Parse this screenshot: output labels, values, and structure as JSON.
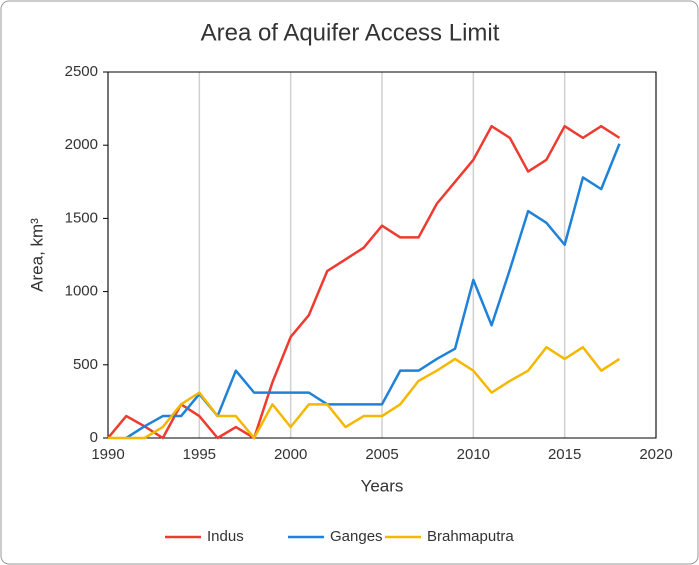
{
  "chart_data": {
    "type": "line",
    "title": "Area of Aquifer Access Limit",
    "x_label": "Years",
    "y_label": "Area, km³",
    "x": [
      1990,
      1991,
      1992,
      1993,
      1994,
      1995,
      1996,
      1997,
      1998,
      1999,
      2000,
      2001,
      2002,
      2003,
      2004,
      2005,
      2006,
      2007,
      2008,
      2009,
      2010,
      2011,
      2012,
      2013,
      2014,
      2015,
      2016,
      2017,
      2018
    ],
    "series": [
      {
        "name": "Indus",
        "color": "#ee3b2f",
        "values": [
          0,
          150,
          80,
          0,
          230,
          150,
          0,
          75,
          0,
          380,
          690,
          840,
          1140,
          1220,
          1300,
          1450,
          1370,
          1370,
          1600,
          1750,
          1900,
          2130,
          2050,
          1820,
          1900,
          2130,
          2050,
          2130,
          2050
        ]
      },
      {
        "name": "Ganges",
        "color": "#1f82d8",
        "values": [
          null,
          0,
          80,
          150,
          150,
          300,
          150,
          460,
          310,
          310,
          310,
          310,
          230,
          230,
          230,
          230,
          460,
          460,
          540,
          610,
          1080,
          770,
          1150,
          1550,
          1470,
          1320,
          1780,
          1700,
          2010
        ]
      },
      {
        "name": "Brahmaputra",
        "color": "#f5b800",
        "values": [
          0,
          0,
          0,
          75,
          230,
          310,
          150,
          150,
          0,
          230,
          75,
          230,
          230,
          75,
          150,
          150,
          230,
          390,
          460,
          540,
          460,
          310,
          390,
          460,
          620,
          540,
          620,
          460,
          540
        ]
      }
    ],
    "xlim": [
      1990,
      2020
    ],
    "xticks": [
      1990,
      1995,
      2000,
      2005,
      2010,
      2015,
      2020
    ],
    "ylim": [
      0,
      2500
    ],
    "yticks": [
      0,
      500,
      1000,
      1500,
      2000,
      2500
    ],
    "grid": "x",
    "legend": "bottom"
  }
}
